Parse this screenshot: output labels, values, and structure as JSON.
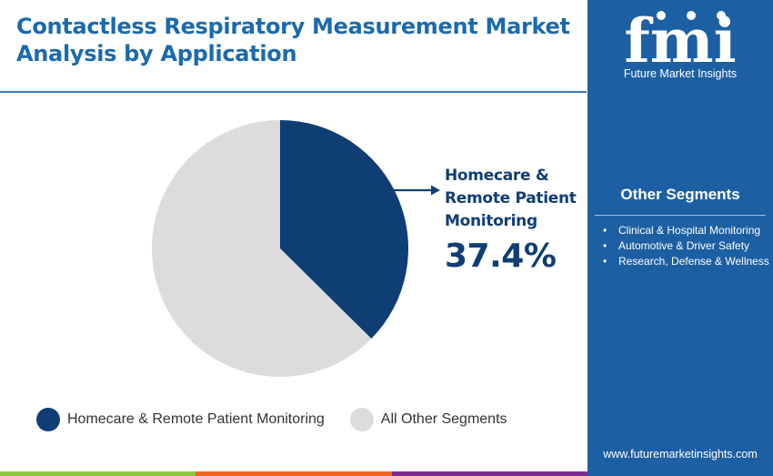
{
  "title": "Contactless Respiratory Measurement Market Analysis by Application",
  "chart_data": {
    "type": "pie",
    "slices": [
      {
        "label": "Homecare & Remote Patient Monitoring",
        "value": 37.4,
        "color": "#0f3e74"
      },
      {
        "label": "All Other Segments",
        "value": 62.6,
        "color": "#dcdcdc"
      }
    ],
    "callout": {
      "label": "Homecare & Remote Patient Monitoring",
      "value_text": "37.4%"
    },
    "legend": {
      "placement": "bottom",
      "entries": [
        {
          "label": "Homecare & Remote Patient Monitoring",
          "color": "#0f3e74"
        },
        {
          "label": "All Other Segments",
          "color": "#dcdcdc"
        }
      ]
    }
  },
  "sidebar": {
    "logo_letters": "fmi",
    "logo_text": "Future Market Insights",
    "heading": "Other Segments",
    "bullet": "•",
    "items": [
      "Clinical & Hospital Monitoring",
      "Automotive & Driver Safety",
      "Research, Defense & Wellness"
    ],
    "website": "www.futuremarketinsights.com"
  },
  "colors": {
    "brand_blue": "#1d5fa3",
    "title_blue": "#1b6aae",
    "bottom_bar": [
      "#8dc63f",
      "#f26522",
      "#7b2c8f"
    ]
  }
}
